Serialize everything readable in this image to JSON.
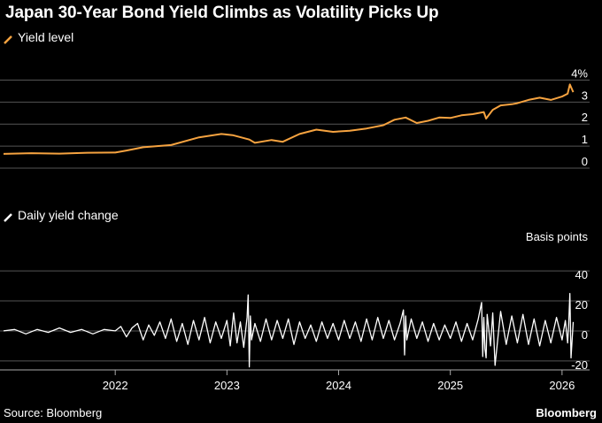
{
  "header": {
    "title": "Japan 30-Year Bond Yield Climbs as Volatility Picks Up"
  },
  "footer": {
    "source": "Source: Bloomberg",
    "brand": "Bloomberg"
  },
  "colors": {
    "background": "#000000",
    "yield_line": "#f6a340",
    "change_line": "#ffffff",
    "grid": "#555555",
    "axis": "#aaaaaa"
  },
  "chart_data": [
    {
      "type": "line",
      "legend": "Yield level",
      "unit_label": "%",
      "ylim": [
        -0.4,
        4.5
      ],
      "yticks": [
        0,
        1,
        2,
        3,
        4
      ],
      "ytick_labels": [
        "0",
        "1",
        "2",
        "3",
        "4%"
      ],
      "grid": true,
      "series": [
        {
          "name": "Yield level",
          "x": [
            2021.0,
            2021.25,
            2021.5,
            2021.75,
            2022.0,
            2022.1,
            2022.25,
            2022.5,
            2022.75,
            2022.95,
            2023.05,
            2023.2,
            2023.25,
            2023.4,
            2023.5,
            2023.65,
            2023.8,
            2023.95,
            2024.1,
            2024.25,
            2024.4,
            2024.5,
            2024.6,
            2024.7,
            2024.8,
            2024.9,
            2025.0,
            2025.1,
            2025.2,
            2025.3,
            2025.32,
            2025.38,
            2025.45,
            2025.55,
            2025.6,
            2025.7,
            2025.8,
            2025.9,
            2026.0,
            2026.05,
            2026.07,
            2026.1
          ],
          "values": [
            0.65,
            0.68,
            0.66,
            0.7,
            0.71,
            0.8,
            0.95,
            1.05,
            1.4,
            1.55,
            1.5,
            1.3,
            1.15,
            1.28,
            1.2,
            1.55,
            1.75,
            1.65,
            1.7,
            1.8,
            1.95,
            2.2,
            2.3,
            2.05,
            2.15,
            2.3,
            2.28,
            2.4,
            2.45,
            2.55,
            2.25,
            2.65,
            2.85,
            2.9,
            2.95,
            3.1,
            3.2,
            3.1,
            3.25,
            3.38,
            3.8,
            3.45
          ]
        }
      ]
    },
    {
      "type": "line",
      "legend": "Daily yield change",
      "unit_label": "Basis points",
      "ylim": [
        -26,
        46
      ],
      "yticks": [
        -20,
        0,
        20,
        40
      ],
      "ytick_labels": [
        "-20",
        "0",
        "20",
        "40"
      ],
      "grid": true,
      "xticks": [
        2022,
        2023,
        2024,
        2025,
        2026
      ],
      "xtick_labels": [
        "2022",
        "2023",
        "2024",
        "2025",
        "2026"
      ],
      "xlim": [
        2021.0,
        2026.12
      ],
      "series": [
        {
          "name": "Daily yield change",
          "x": [
            2021.0,
            2021.1,
            2021.2,
            2021.3,
            2021.4,
            2021.5,
            2021.6,
            2021.7,
            2021.8,
            2021.9,
            2022.0,
            2022.05,
            2022.1,
            2022.15,
            2022.2,
            2022.25,
            2022.3,
            2022.35,
            2022.4,
            2022.45,
            2022.5,
            2022.55,
            2022.6,
            2022.65,
            2022.7,
            2022.75,
            2022.8,
            2022.85,
            2022.9,
            2022.95,
            2023.0,
            2023.03,
            2023.06,
            2023.09,
            2023.12,
            2023.15,
            2023.18,
            2023.19,
            2023.2,
            2023.21,
            2023.22,
            2023.25,
            2023.3,
            2023.35,
            2023.4,
            2023.45,
            2023.5,
            2023.55,
            2023.6,
            2023.65,
            2023.7,
            2023.75,
            2023.8,
            2023.85,
            2023.9,
            2023.95,
            2024.0,
            2024.05,
            2024.1,
            2024.15,
            2024.2,
            2024.25,
            2024.3,
            2024.35,
            2024.4,
            2024.45,
            2024.5,
            2024.55,
            2024.58,
            2024.59,
            2024.6,
            2024.61,
            2024.65,
            2024.7,
            2024.75,
            2024.8,
            2024.85,
            2024.9,
            2024.95,
            2025.0,
            2025.05,
            2025.1,
            2025.15,
            2025.2,
            2025.25,
            2025.28,
            2025.29,
            2025.3,
            2025.31,
            2025.32,
            2025.33,
            2025.36,
            2025.38,
            2025.4,
            2025.45,
            2025.5,
            2025.55,
            2025.6,
            2025.65,
            2025.7,
            2025.75,
            2025.8,
            2025.85,
            2025.9,
            2025.95,
            2026.0,
            2026.03,
            2026.05,
            2026.06,
            2026.07,
            2026.08,
            2026.1
          ],
          "values": [
            0,
            1,
            -2,
            1,
            -1,
            2,
            -1,
            1,
            -2,
            1,
            0,
            3,
            -4,
            2,
            5,
            -6,
            4,
            -3,
            6,
            -5,
            8,
            -7,
            5,
            -9,
            7,
            -6,
            9,
            -8,
            6,
            -5,
            7,
            -10,
            12,
            -8,
            6,
            -11,
            9,
            24,
            -24,
            10,
            -6,
            5,
            -7,
            8,
            -6,
            7,
            -5,
            8,
            -9,
            6,
            -5,
            4,
            -7,
            6,
            -5,
            5,
            -6,
            7,
            -5,
            6,
            -7,
            8,
            -6,
            9,
            -5,
            7,
            -6,
            5,
            14,
            -16,
            10,
            -6,
            8,
            -5,
            6,
            -7,
            5,
            -6,
            4,
            -5,
            6,
            -7,
            5,
            -6,
            8,
            19,
            -17,
            9,
            -12,
            -18,
            11,
            -10,
            12,
            -23,
            13,
            -9,
            10,
            -8,
            11,
            -9,
            8,
            -10,
            7,
            -8,
            9,
            -6,
            7,
            -8,
            5,
            25,
            -18,
            6
          ]
        }
      ]
    }
  ]
}
